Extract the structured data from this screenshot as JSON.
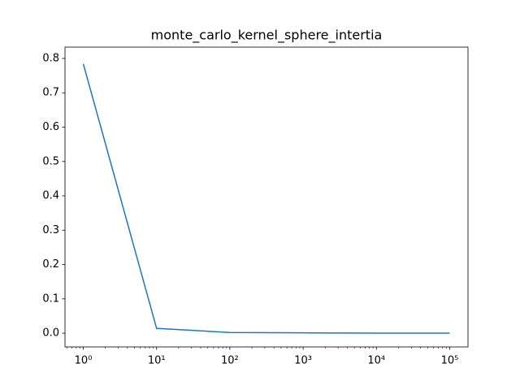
{
  "chart_data": {
    "type": "line",
    "title": "monte_carlo_kernel_sphere_intertia",
    "x": [
      1,
      10,
      100,
      1000,
      10000,
      100000
    ],
    "series": [
      {
        "color": "#1f77b4",
        "values": [
          0.784,
          0.014,
          0.002,
          0.001,
          0.0003,
          0.0002
        ]
      }
    ],
    "xscale": "log",
    "xlim": [
      0.5623,
      177828
    ],
    "xticks": [
      {
        "value": 1,
        "label": "10⁰"
      },
      {
        "value": 10,
        "label": "10¹"
      },
      {
        "value": 100,
        "label": "10²"
      },
      {
        "value": 1000,
        "label": "10³"
      },
      {
        "value": 10000,
        "label": "10⁴"
      },
      {
        "value": 100000,
        "label": "10⁵"
      }
    ],
    "ylim": [
      -0.04,
      0.833
    ],
    "yticks": [
      {
        "value": 0,
        "label": "0.0"
      },
      0.1,
      0.2,
      0.3,
      0.4,
      0.5,
      0.6,
      0.7,
      0.8
    ],
    "grid": false
  }
}
